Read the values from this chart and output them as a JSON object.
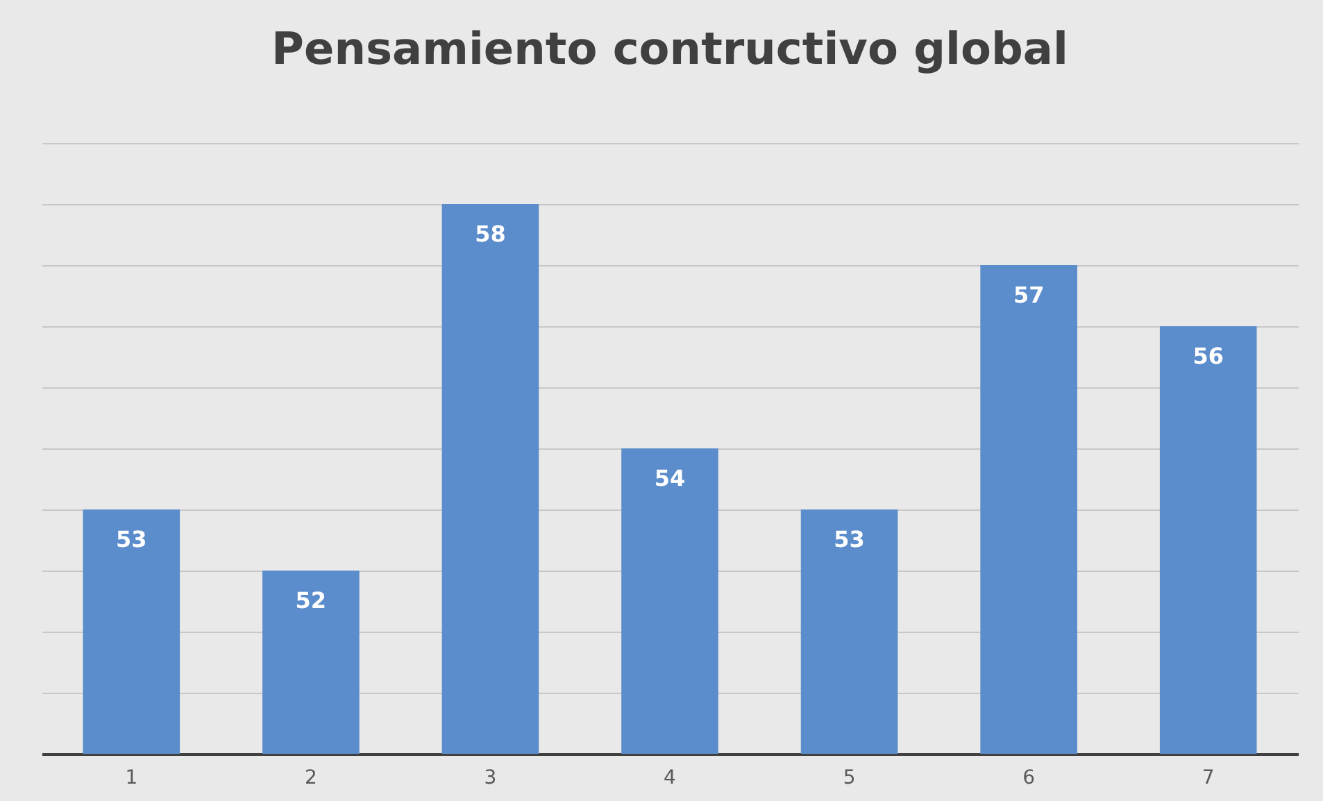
{
  "chart_data": {
    "type": "bar",
    "title": "Pensamiento contructivo global",
    "categories": [
      "1",
      "2",
      "3",
      "4",
      "5",
      "6",
      "7"
    ],
    "values": [
      53,
      52,
      58,
      54,
      53,
      57,
      56
    ],
    "color": "#5b8ccb",
    "ylim": [
      49,
      59
    ],
    "yticks": [
      {
        "value": 49,
        "label": null
      },
      {
        "value": 50,
        "label": null
      },
      {
        "value": 51,
        "label": null
      },
      {
        "value": 52,
        "label": null
      },
      {
        "value": 53,
        "label": null
      },
      {
        "value": 54,
        "label": null
      },
      {
        "value": 55,
        "label": null
      },
      {
        "value": 56,
        "label": null
      },
      {
        "value": 57,
        "label": null
      },
      {
        "value": 58,
        "label": null
      },
      {
        "value": 59,
        "label": null
      }
    ],
    "tick_labels": "x",
    "grid": "y",
    "data_labels": true
  }
}
